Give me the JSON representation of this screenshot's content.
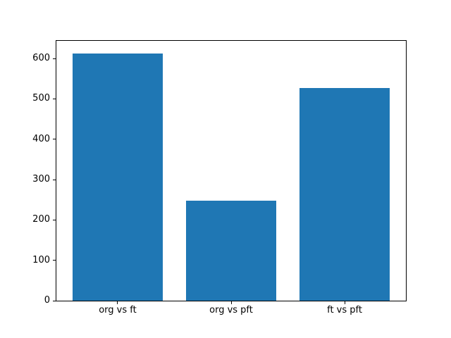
{
  "chart_data": {
    "type": "bar",
    "title": "",
    "xlabel": "",
    "ylabel": "",
    "categories": [
      "org vs ft",
      "org vs pft",
      "ft vs pft"
    ],
    "values": [
      613,
      247,
      527
    ],
    "yticks": [
      0,
      100,
      200,
      300,
      400,
      500,
      600
    ],
    "ylim": [
      0,
      643.65
    ],
    "xlim": [
      -0.54,
      2.54
    ],
    "bar_width_fraction": 0.8,
    "bar_color": "#1f77b4",
    "frame_color": "#000000",
    "tick_color": "#000000",
    "background_color": "#ffffff",
    "grid": false,
    "legend": false
  }
}
